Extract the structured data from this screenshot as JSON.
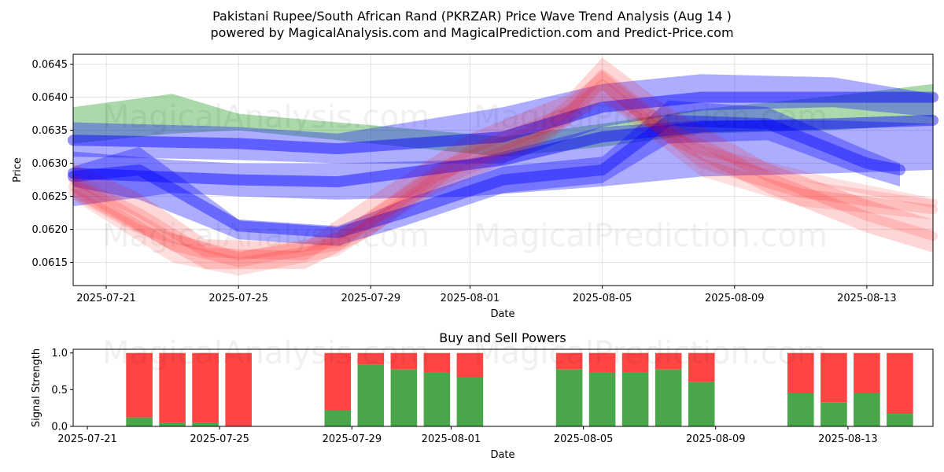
{
  "watermark": "MagicalAnalysis.com MagicalPrediction.com",
  "watermarks": [
    "MagicalAnalysis.com",
    "MagicalPrediction.com"
  ],
  "chart_data": [
    {
      "type": "area",
      "title": "Pakistani Rupee/South African Rand (PKRZAR) Price Wave Trend Analysis (Aug 14 )",
      "subtitle": "powered by MagicalAnalysis.com and MagicalPrediction.com and Predict-Price.com",
      "xlabel": "Date",
      "ylabel": "Price",
      "x_ticks": [
        "2025-07-21",
        "2025-07-25",
        "2025-07-29",
        "2025-08-01",
        "2025-08-05",
        "2025-08-09",
        "2025-08-13"
      ],
      "y_ticks": [
        "0.0615",
        "0.0620",
        "0.0625",
        "0.0630",
        "0.0635",
        "0.0640",
        "0.0645"
      ],
      "xlim": [
        "2025-07-20",
        "2025-08-15"
      ],
      "ylim": [
        0.06115,
        0.06465
      ],
      "grid": true,
      "bands": [
        {
          "color": "#2ca02c",
          "opacity": 0.4,
          "points": [
            [
              "2025-07-20",
              0.06385,
              0.0633
            ],
            [
              "2025-07-23",
              0.06405,
              0.06345
            ],
            [
              "2025-07-25",
              0.06375,
              0.0635
            ],
            [
              "2025-07-28",
              0.06362,
              0.06335
            ],
            [
              "2025-08-02",
              0.0634,
              0.0631
            ],
            [
              "2025-08-05",
              0.0636,
              0.06325
            ],
            [
              "2025-08-08",
              0.06382,
              0.06345
            ],
            [
              "2025-08-12",
              0.06402,
              0.0635
            ],
            [
              "2025-08-15",
              0.0642,
              0.0636
            ]
          ]
        },
        {
          "color": "#0000ff",
          "opacity": 0.32,
          "points": [
            [
              "2025-07-20",
              0.06362,
              0.0631
            ],
            [
              "2025-07-25",
              0.06355,
              0.06305
            ],
            [
              "2025-07-28",
              0.06345,
              0.063
            ],
            [
              "2025-08-02",
              0.06385,
              0.063
            ],
            [
              "2025-08-05",
              0.0642,
              0.06355
            ],
            [
              "2025-08-08",
              0.06435,
              0.0638
            ],
            [
              "2025-08-12",
              0.0643,
              0.06385
            ],
            [
              "2025-08-15",
              0.06405,
              0.0637
            ]
          ]
        },
        {
          "color": "#0000ff",
          "opacity": 0.32,
          "points": [
            [
              "2025-07-20",
              0.06318,
              0.06235
            ],
            [
              "2025-07-23",
              0.06305,
              0.06255
            ],
            [
              "2025-07-25",
              0.063,
              0.0625
            ],
            [
              "2025-07-28",
              0.063,
              0.06245
            ],
            [
              "2025-08-01",
              0.06305,
              0.0625
            ],
            [
              "2025-08-05",
              0.06355,
              0.06265
            ],
            [
              "2025-08-08",
              0.06365,
              0.0628
            ],
            [
              "2025-08-12",
              0.06365,
              0.06285
            ],
            [
              "2025-08-15",
              0.0636,
              0.0629
            ]
          ]
        },
        {
          "color": "#0000ff",
          "opacity": 0.32,
          "points": [
            [
              "2025-07-20",
              0.06295,
              0.06265
            ],
            [
              "2025-07-22",
              0.06325,
              0.06245
            ],
            [
              "2025-07-25",
              0.06215,
              0.06185
            ],
            [
              "2025-07-28",
              0.06205,
              0.06175
            ],
            [
              "2025-07-30",
              0.06245,
              0.06205
            ],
            [
              "2025-08-02",
              0.06295,
              0.06255
            ],
            [
              "2025-08-05",
              0.0631,
              0.0627
            ],
            [
              "2025-08-07",
              0.06395,
              0.0633
            ],
            [
              "2025-08-10",
              0.06385,
              0.06335
            ],
            [
              "2025-08-13",
              0.0632,
              0.0628
            ],
            [
              "2025-08-14",
              0.063,
              0.06265
            ]
          ]
        },
        {
          "color": "#ff0000",
          "opacity": 0.16,
          "points": [
            [
              "2025-07-20",
              0.063,
              0.0625
            ],
            [
              "2025-07-22",
              0.06255,
              0.06195
            ],
            [
              "2025-07-24",
              0.06185,
              0.0614
            ],
            [
              "2025-07-27",
              0.0618,
              0.0614
            ],
            [
              "2025-07-29",
              0.0625,
              0.0619
            ],
            [
              "2025-08-01",
              0.06345,
              0.063
            ],
            [
              "2025-08-04",
              0.06405,
              0.0636
            ],
            [
              "2025-08-05",
              0.0646,
              0.0641
            ],
            [
              "2025-08-07",
              0.06385,
              0.0633
            ],
            [
              "2025-08-10",
              0.063,
              0.06255
            ],
            [
              "2025-08-13",
              0.06245,
              0.06195
            ],
            [
              "2025-08-15",
              0.06215,
              0.06165
            ]
          ]
        },
        {
          "color": "#ff0000",
          "opacity": 0.13,
          "points": [
            [
              "2025-07-20",
              0.0628,
              0.06245
            ],
            [
              "2025-07-23",
              0.06195,
              0.0615
            ],
            [
              "2025-07-25",
              0.06165,
              0.0613
            ],
            [
              "2025-07-28",
              0.06195,
              0.0616
            ],
            [
              "2025-07-31",
              0.063,
              0.06255
            ],
            [
              "2025-08-03",
              0.0636,
              0.0632
            ],
            [
              "2025-08-05",
              0.0644,
              0.06395
            ],
            [
              "2025-08-08",
              0.0632,
              0.0628
            ],
            [
              "2025-08-11",
              0.06275,
              0.06235
            ],
            [
              "2025-08-15",
              0.06245,
              0.06215
            ]
          ]
        }
      ],
      "lines": [
        {
          "color": "#0000ff",
          "opacity": 0.45,
          "width": 14,
          "points": [
            [
              "2025-07-20",
              0.06335
            ],
            [
              "2025-07-25",
              0.0633
            ],
            [
              "2025-07-28",
              0.06322
            ],
            [
              "2025-08-02",
              0.0634
            ],
            [
              "2025-08-05",
              0.06385
            ],
            [
              "2025-08-08",
              0.064
            ],
            [
              "2025-08-15",
              0.064
            ]
          ]
        },
        {
          "color": "#0000ff",
          "opacity": 0.45,
          "width": 14,
          "points": [
            [
              "2025-07-20",
              0.06285
            ],
            [
              "2025-07-25",
              0.06275
            ],
            [
              "2025-07-28",
              0.06272
            ],
            [
              "2025-08-02",
              0.06305
            ],
            [
              "2025-08-05",
              0.0634
            ],
            [
              "2025-08-08",
              0.06355
            ],
            [
              "2025-08-12",
              0.0636
            ],
            [
              "2025-08-15",
              0.06365
            ]
          ]
        },
        {
          "color": "#0000ff",
          "opacity": 0.4,
          "width": 14,
          "points": [
            [
              "2025-07-20",
              0.0628
            ],
            [
              "2025-07-22",
              0.0629
            ],
            [
              "2025-07-25",
              0.06205
            ],
            [
              "2025-07-28",
              0.06195
            ],
            [
              "2025-07-30",
              0.06225
            ],
            [
              "2025-08-02",
              0.06275
            ],
            [
              "2025-08-05",
              0.0629
            ],
            [
              "2025-08-07",
              0.06365
            ],
            [
              "2025-08-10",
              0.0636
            ],
            [
              "2025-08-13",
              0.063
            ],
            [
              "2025-08-14",
              0.0629
            ]
          ]
        },
        {
          "color": "#ff0000",
          "opacity": 0.14,
          "width": 12,
          "points": [
            [
              "2025-07-20",
              0.06275
            ],
            [
              "2025-07-22",
              0.06225
            ],
            [
              "2025-07-24",
              0.06165
            ],
            [
              "2025-07-27",
              0.0616
            ],
            [
              "2025-07-29",
              0.0622
            ],
            [
              "2025-08-01",
              0.0632
            ],
            [
              "2025-08-04",
              0.0638
            ],
            [
              "2025-08-05",
              0.06435
            ],
            [
              "2025-08-07",
              0.06355
            ],
            [
              "2025-08-10",
              0.0628
            ],
            [
              "2025-08-13",
              0.0622
            ],
            [
              "2025-08-15",
              0.0619
            ]
          ]
        },
        {
          "color": "#ff0000",
          "opacity": 0.14,
          "width": 12,
          "points": [
            [
              "2025-07-20",
              0.06265
            ],
            [
              "2025-07-23",
              0.06175
            ],
            [
              "2025-07-25",
              0.0615
            ],
            [
              "2025-07-28",
              0.06175
            ],
            [
              "2025-07-31",
              0.0628
            ],
            [
              "2025-08-03",
              0.0634
            ],
            [
              "2025-08-05",
              0.0642
            ],
            [
              "2025-08-08",
              0.063
            ],
            [
              "2025-08-11",
              0.06255
            ],
            [
              "2025-08-15",
              0.0623
            ]
          ]
        },
        {
          "color": "#ff0000",
          "opacity": 0.12,
          "width": 12,
          "points": [
            [
              "2025-07-20",
              0.06255
            ],
            [
              "2025-07-22",
              0.062
            ],
            [
              "2025-07-25",
              0.0616
            ],
            [
              "2025-07-28",
              0.0618
            ],
            [
              "2025-07-31",
              0.0627
            ],
            [
              "2025-08-03",
              0.06335
            ],
            [
              "2025-08-05",
              0.064
            ],
            [
              "2025-08-08",
              0.0632
            ],
            [
              "2025-08-12",
              0.0627
            ],
            [
              "2025-08-15",
              0.0624
            ]
          ]
        }
      ]
    },
    {
      "type": "bar",
      "title": "Buy and Sell Powers",
      "xlabel": "Date",
      "ylabel": "Signal Strength",
      "x_ticks": [
        "2025-07-21",
        "2025-07-25",
        "2025-07-29",
        "2025-08-01",
        "2025-08-05",
        "2025-08-09",
        "2025-08-13"
      ],
      "y_ticks": [
        "0.0",
        "0.5",
        "1.0"
      ],
      "xlim": [
        "2025-07-20",
        "2025-08-15"
      ],
      "ylim": [
        0,
        1.05
      ],
      "series": [
        {
          "name": "buy",
          "color": "#4aa64a"
        },
        {
          "name": "sell",
          "color": "#ff4444"
        }
      ],
      "bars": [
        {
          "date": "2025-07-22",
          "buy": 0.12
        },
        {
          "date": "2025-07-23",
          "buy": 0.05
        },
        {
          "date": "2025-07-24",
          "buy": 0.05
        },
        {
          "date": "2025-07-25",
          "buy": 0.0
        },
        {
          "date": "2025-07-28",
          "buy": 0.22
        },
        {
          "date": "2025-07-29",
          "buy": 0.84
        },
        {
          "date": "2025-07-30",
          "buy": 0.78
        },
        {
          "date": "2025-07-31",
          "buy": 0.73
        },
        {
          "date": "2025-08-01",
          "buy": 0.67
        },
        {
          "date": "2025-08-04",
          "buy": 0.78
        },
        {
          "date": "2025-08-05",
          "buy": 0.73
        },
        {
          "date": "2025-08-06",
          "buy": 0.73
        },
        {
          "date": "2025-08-07",
          "buy": 0.78
        },
        {
          "date": "2025-08-08",
          "buy": 0.61
        },
        {
          "date": "2025-08-11",
          "buy": 0.45
        },
        {
          "date": "2025-08-12",
          "buy": 0.33
        },
        {
          "date": "2025-08-13",
          "buy": 0.45
        },
        {
          "date": "2025-08-14",
          "buy": 0.17
        }
      ]
    }
  ]
}
